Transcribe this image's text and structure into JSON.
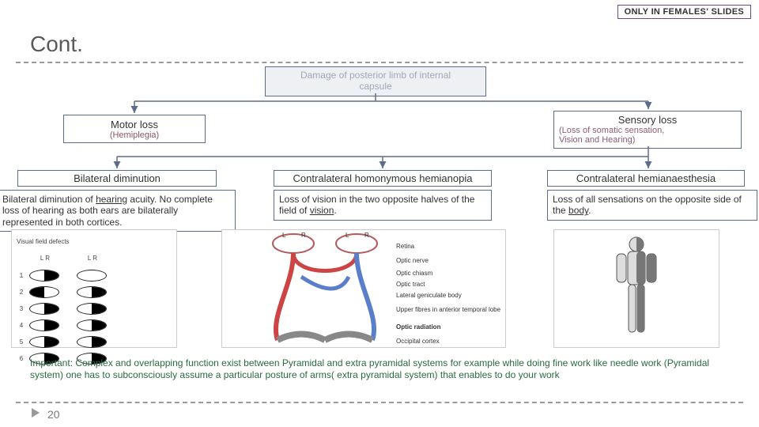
{
  "badge": "ONLY IN FEMALES' SLIDES",
  "title": "Cont.",
  "root": {
    "line1": "Damage of posterior limb of internal",
    "line2": "capsule"
  },
  "motor": {
    "title": "Motor loss",
    "sub": "(Hemiplegia)"
  },
  "sensory": {
    "title": "Sensory loss",
    "sub1": "(Loss of somatic sensation,",
    "sub2": "Vision and Hearing)"
  },
  "cols": {
    "c1": {
      "head": "Bilateral diminution",
      "body_a": "Bilateral diminution of ",
      "body_u": "hearing",
      "body_b": " acuity.\nNo complete loss of hearing as both  ears are bilaterally represented in both cortices."
    },
    "c2": {
      "head": "Contralateral homonymous hemianopia",
      "body_a": "Loss of vision in the two opposite halves of the field of ",
      "body_u": "vision",
      "body_b": "."
    },
    "c3": {
      "head": "Contralateral hemianaesthesia",
      "body_a": "Loss of all sensations on the opposite side of the ",
      "body_u": "body",
      "body_b": "."
    }
  },
  "vfd": {
    "title": "Visual field defects",
    "hdr_l": "L          R",
    "hdr_r": "L          R",
    "rows": [
      {
        "n": "1",
        "L_l": false,
        "L_r": true,
        "R_l": false,
        "R_r": false
      },
      {
        "n": "2",
        "L_l": true,
        "L_r": false,
        "R_l": false,
        "R_r": true
      },
      {
        "n": "3",
        "L_l": false,
        "L_r": true,
        "R_l": false,
        "R_r": true
      },
      {
        "n": "4",
        "L_l": false,
        "L_r": true,
        "R_l": false,
        "R_r": true
      },
      {
        "n": "5",
        "L_l": false,
        "L_r": true,
        "R_l": false,
        "R_r": true
      },
      {
        "n": "6",
        "L_l": false,
        "L_r": true,
        "R_l": false,
        "R_r": true
      }
    ]
  },
  "optic_labels": [
    "Retina",
    "Optic nerve",
    "Optic chiasm",
    "Optic tract",
    "Lateral geniculate body",
    "Upper fibres in anterior temporal lobe",
    "Optic radiation",
    "Occipital cortex"
  ],
  "note": "Important: Complex and overlapping function exist between  Pyramidal and extra pyramidal systems for example  while doing fine work like needle work (Pyramidal  system) one has to subconsciously assume a particular  posture of arms( extra pyramidal system) that enables  to do your work",
  "page": "20",
  "colors": {
    "box_border": "#5d6c8b",
    "root_bg": "#eef0f4",
    "root_text": "#a0a7b6",
    "note_text": "#2a6a40",
    "badge_border": "#6b4a8a",
    "arrow": "#5d6c8b"
  }
}
